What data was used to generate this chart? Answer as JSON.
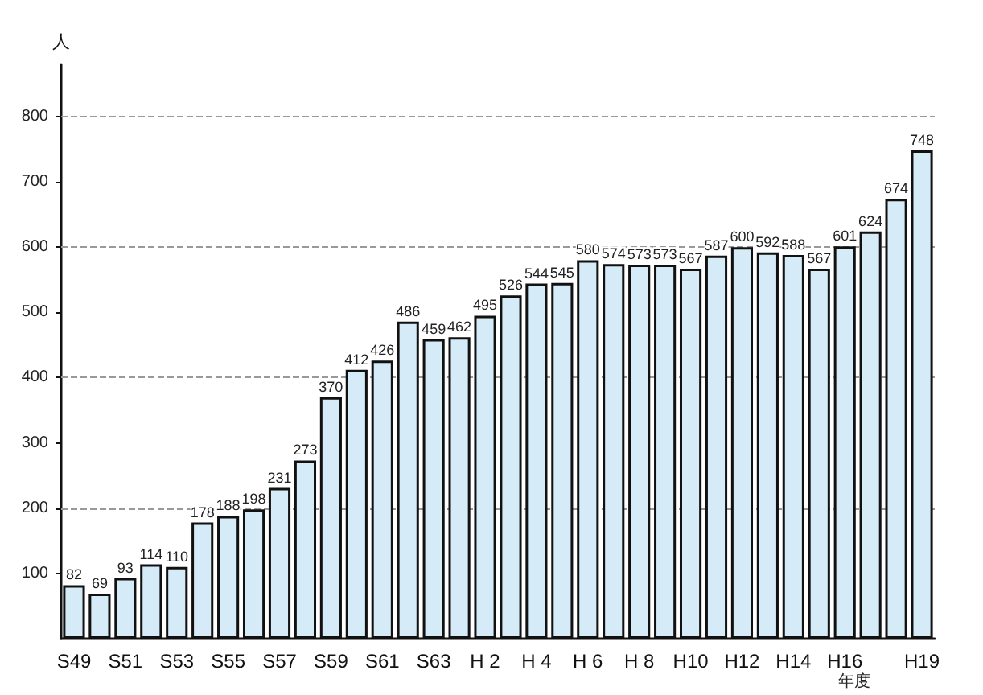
{
  "chart_data": {
    "type": "bar",
    "ylabel": "人",
    "xlabel": "年度",
    "categories": [
      "S49",
      null,
      "S51",
      null,
      "S53",
      null,
      "S55",
      null,
      "S57",
      null,
      "S59",
      null,
      "S61",
      null,
      "S63",
      null,
      "H 2",
      null,
      "H 4",
      null,
      "H 6",
      null,
      "H 8",
      null,
      "H10",
      null,
      "H12",
      null,
      "H14",
      null,
      "H16",
      null,
      null,
      "H19"
    ],
    "values": [
      82,
      69,
      93,
      114,
      110,
      178,
      188,
      198,
      231,
      273,
      370,
      412,
      426,
      486,
      459,
      462,
      495,
      526,
      544,
      545,
      580,
      574,
      573,
      573,
      567,
      587,
      600,
      592,
      588,
      567,
      601,
      624,
      674,
      748
    ],
    "color": "#d5ebf7",
    "data_labels": true,
    "ylim": [
      0,
      880
    ],
    "yticks": [
      100,
      200,
      300,
      400,
      500,
      600,
      700,
      800
    ],
    "ref_lines": [
      {
        "axis": "y",
        "value": 200,
        "line_style": "dashed",
        "color": "#999999"
      },
      {
        "axis": "y",
        "value": 400,
        "line_style": "dashed",
        "color": "#999999"
      },
      {
        "axis": "y",
        "value": 600,
        "line_style": "dashed",
        "color": "#999999"
      },
      {
        "axis": "y",
        "value": 800,
        "line_style": "dashed",
        "color": "#999999"
      }
    ]
  }
}
